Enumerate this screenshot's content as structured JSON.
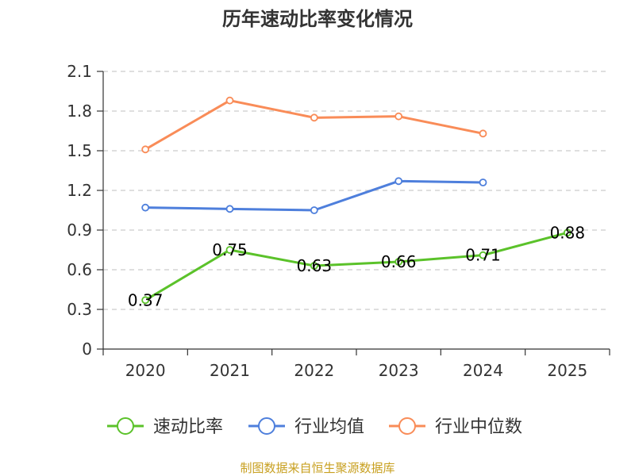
{
  "chart_data": {
    "type": "line",
    "title": "历年速动比率变化情况",
    "categories": [
      "2020",
      "2021",
      "2022",
      "2023",
      "2024",
      "2025"
    ],
    "ylim": [
      0,
      2.1
    ],
    "yticks": [
      "0",
      "0.3",
      "0.6",
      "0.9",
      "1.2",
      "1.5",
      "1.8",
      "2.1"
    ],
    "grid": true,
    "legend_position": "bottom",
    "series": [
      {
        "name": "速动比率",
        "color": "#5bc22a",
        "values": [
          0.37,
          0.75,
          0.63,
          0.66,
          0.71,
          0.88
        ],
        "labels": [
          "0.37",
          "0.75",
          "0.63",
          "0.66",
          "0.71",
          "0.88"
        ]
      },
      {
        "name": "行业均值",
        "color": "#4e7fdc",
        "values": [
          1.07,
          1.06,
          1.05,
          1.27,
          1.26,
          null
        ]
      },
      {
        "name": "行业中位数",
        "color": "#f98c58",
        "values": [
          1.51,
          1.88,
          1.75,
          1.76,
          1.63,
          null
        ]
      }
    ]
  },
  "footer": {
    "source": "制图数据来自恒生聚源数据库"
  }
}
